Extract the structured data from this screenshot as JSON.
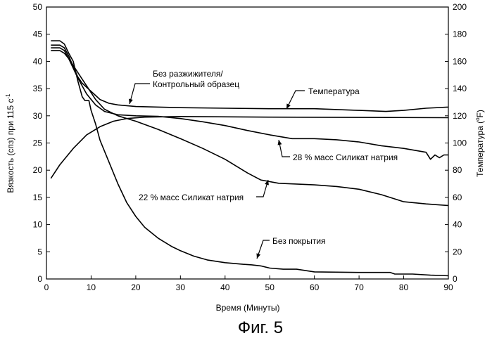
{
  "chart_data": {
    "type": "line",
    "title": "",
    "caption": "Фиг. 5",
    "xlabel": "Время (Минуты)",
    "ylabel": "Вязкость (спз) при 115 с",
    "ylabel_sup": "-1",
    "y2label": "Температура (",
    "y2label_sup": "o",
    "y2label_tail": "F)",
    "xlim": [
      0,
      90
    ],
    "ylim": [
      0,
      50
    ],
    "y2lim": [
      0,
      200
    ],
    "x_ticks": [
      "0",
      "10",
      "20",
      "30",
      "40",
      "50",
      "60",
      "70",
      "80",
      "90"
    ],
    "y_ticks": [
      "0",
      "5",
      "10",
      "15",
      "20",
      "25",
      "30",
      "35",
      "40",
      "45",
      "50"
    ],
    "y2_ticks": [
      "0",
      "20",
      "40",
      "60",
      "80",
      "100",
      "120",
      "140",
      "160",
      "180",
      "200"
    ],
    "grid": false,
    "series": [
      {
        "name": "Без разжижителя/ Контрольный образец",
        "axis": "left",
        "points": [
          [
            1,
            43.0
          ],
          [
            3,
            43.0
          ],
          [
            4,
            42.5
          ],
          [
            5,
            41.0
          ],
          [
            6,
            39.0
          ],
          [
            7,
            37.2
          ],
          [
            8,
            36.0
          ],
          [
            10,
            34.5
          ],
          [
            12,
            33.0
          ],
          [
            14,
            32.3
          ],
          [
            16,
            32.0
          ],
          [
            20,
            31.7
          ],
          [
            30,
            31.5
          ],
          [
            40,
            31.4
          ],
          [
            50,
            31.3
          ],
          [
            60,
            31.3
          ],
          [
            70,
            31.0
          ],
          [
            76,
            30.8
          ],
          [
            80,
            31.0
          ],
          [
            85,
            31.4
          ],
          [
            90,
            31.6
          ]
        ]
      },
      {
        "name": "Температура",
        "axis": "right",
        "points": [
          [
            1,
            74
          ],
          [
            3,
            84
          ],
          [
            6,
            96
          ],
          [
            9,
            106
          ],
          [
            12,
            112
          ],
          [
            15,
            116
          ],
          [
            18,
            118
          ],
          [
            22,
            119
          ],
          [
            30,
            119.5
          ],
          [
            50,
            119
          ],
          [
            70,
            118.8
          ],
          [
            90,
            118.6
          ]
        ]
      },
      {
        "name": "28 % масс Силикат натрия",
        "axis": "left",
        "points": [
          [
            1,
            42.5
          ],
          [
            3,
            42.5
          ],
          [
            4,
            42.0
          ],
          [
            5,
            40.5
          ],
          [
            7,
            37.0
          ],
          [
            9,
            34.0
          ],
          [
            11,
            32.0
          ],
          [
            13,
            30.8
          ],
          [
            16,
            30.2
          ],
          [
            20,
            30.0
          ],
          [
            25,
            29.9
          ],
          [
            30,
            29.5
          ],
          [
            35,
            28.9
          ],
          [
            40,
            28.2
          ],
          [
            45,
            27.3
          ],
          [
            50,
            26.5
          ],
          [
            55,
            25.8
          ],
          [
            60,
            25.8
          ],
          [
            65,
            25.6
          ],
          [
            70,
            25.2
          ],
          [
            75,
            24.5
          ],
          [
            80,
            24.0
          ],
          [
            85,
            23.3
          ],
          [
            86,
            22.0
          ],
          [
            87,
            22.8
          ],
          [
            88,
            22.3
          ],
          [
            89,
            22.8
          ],
          [
            90,
            22.8
          ]
        ]
      },
      {
        "name": "22 % масс Силикат натрия",
        "axis": "left",
        "points": [
          [
            1,
            42.0
          ],
          [
            3,
            42.0
          ],
          [
            4,
            41.5
          ],
          [
            5,
            40.5
          ],
          [
            7,
            38.0
          ],
          [
            9,
            35.5
          ],
          [
            11,
            33.0
          ],
          [
            13,
            31.2
          ],
          [
            16,
            30.0
          ],
          [
            20,
            29.0
          ],
          [
            25,
            27.5
          ],
          [
            30,
            25.8
          ],
          [
            35,
            24.0
          ],
          [
            40,
            22.0
          ],
          [
            45,
            19.5
          ],
          [
            48,
            18.2
          ],
          [
            52,
            17.6
          ],
          [
            60,
            17.3
          ],
          [
            65,
            17.0
          ],
          [
            70,
            16.5
          ],
          [
            75,
            15.5
          ],
          [
            80,
            14.2
          ],
          [
            85,
            13.8
          ],
          [
            90,
            13.5
          ]
        ]
      },
      {
        "name": "Без покрытия",
        "axis": "left",
        "points": [
          [
            1,
            43.8
          ],
          [
            3,
            43.8
          ],
          [
            4,
            43.2
          ],
          [
            5,
            41.5
          ],
          [
            6,
            40.0
          ],
          [
            7,
            36.5
          ],
          [
            8,
            33.5
          ],
          [
            8.6,
            32.8
          ],
          [
            9.5,
            32.8
          ],
          [
            10,
            31.0
          ],
          [
            11,
            28.5
          ],
          [
            12,
            25.5
          ],
          [
            14,
            21.5
          ],
          [
            16,
            17.5
          ],
          [
            18,
            14.0
          ],
          [
            20,
            11.5
          ],
          [
            22,
            9.5
          ],
          [
            25,
            7.5
          ],
          [
            28,
            6.0
          ],
          [
            30,
            5.2
          ],
          [
            33,
            4.2
          ],
          [
            36,
            3.5
          ],
          [
            40,
            3.0
          ],
          [
            44,
            2.7
          ],
          [
            46,
            2.6
          ],
          [
            48,
            2.4
          ],
          [
            50,
            2.0
          ],
          [
            53,
            1.8
          ],
          [
            56,
            1.8
          ],
          [
            60,
            1.3
          ],
          [
            70,
            1.2
          ],
          [
            77,
            1.2
          ],
          [
            78,
            0.9
          ],
          [
            82,
            0.9
          ],
          [
            86,
            0.7
          ],
          [
            90,
            0.6
          ]
        ]
      }
    ],
    "annotations": [
      {
        "text": "Без разжижителя/",
        "series": 0
      },
      {
        "text": "Контрольный образец",
        "series": 0
      },
      {
        "text": "Температура",
        "series": 1
      },
      {
        "text": "28 % масс Силикат натрия",
        "series": 2
      },
      {
        "text": "22 % масс Силикат натрия",
        "series": 3
      },
      {
        "text": "Без покрытия",
        "series": 4
      }
    ]
  }
}
